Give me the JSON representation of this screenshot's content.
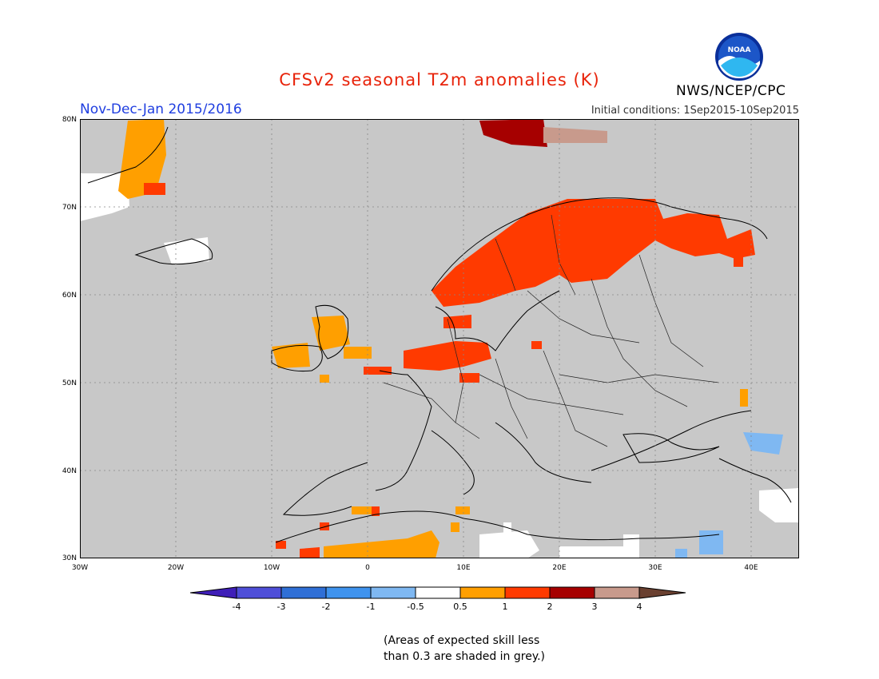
{
  "header": {
    "title": "CFSv2 seasonal T2m anomalies (K)",
    "period": "Nov-Dec-Jan 2015/2016",
    "initial_conditions": "Initial conditions: 1Sep2015-10Sep2015",
    "agency": "NWS/NCEP/CPC",
    "logo_text": "NOAA"
  },
  "map": {
    "lon_range": [
      -30,
      45
    ],
    "lat_range": [
      30,
      80
    ],
    "lat_ticks": [
      "80N",
      "70N",
      "60N",
      "50N",
      "40N",
      "30N"
    ],
    "lon_ticks": [
      "30W",
      "20W",
      "10W",
      "0",
      "10E",
      "20E",
      "30E",
      "40E"
    ],
    "skill_mask_color": "#c8c8c8",
    "anomaly_regions": [
      {
        "name": "Scandinavia",
        "level": "1 to 2"
      },
      {
        "name": "Kola / NW Russia",
        "level": "1 to 2"
      },
      {
        "name": "Svalbard",
        "level": "2 to 3"
      },
      {
        "name": "North Sea coast",
        "level": "1 to 2"
      },
      {
        "name": "British Isles",
        "level": "0.5 to 1"
      },
      {
        "name": "Greenland east coast",
        "level": "0.5 to 1"
      },
      {
        "name": "North Africa",
        "level": "0.5 to 1"
      },
      {
        "name": "Black Sea east",
        "level": "-1 to -0.5"
      }
    ]
  },
  "colorbar": {
    "labels": [
      "-4",
      "-3",
      "-2",
      "-1",
      "-0.5",
      "0.5",
      "1",
      "2",
      "3",
      "4"
    ],
    "colors": [
      "#3f1fb8",
      "#4e4ed8",
      "#2f6fd6",
      "#3f93ee",
      "#7fb8f2",
      "#ffffff",
      "#ff9f00",
      "#ff3a00",
      "#a60000",
      "#c89a8c",
      "#6a4030"
    ]
  },
  "note": {
    "line1": "(Areas of expected skill less",
    "line2": "than 0.3 are shaded in grey.)"
  }
}
